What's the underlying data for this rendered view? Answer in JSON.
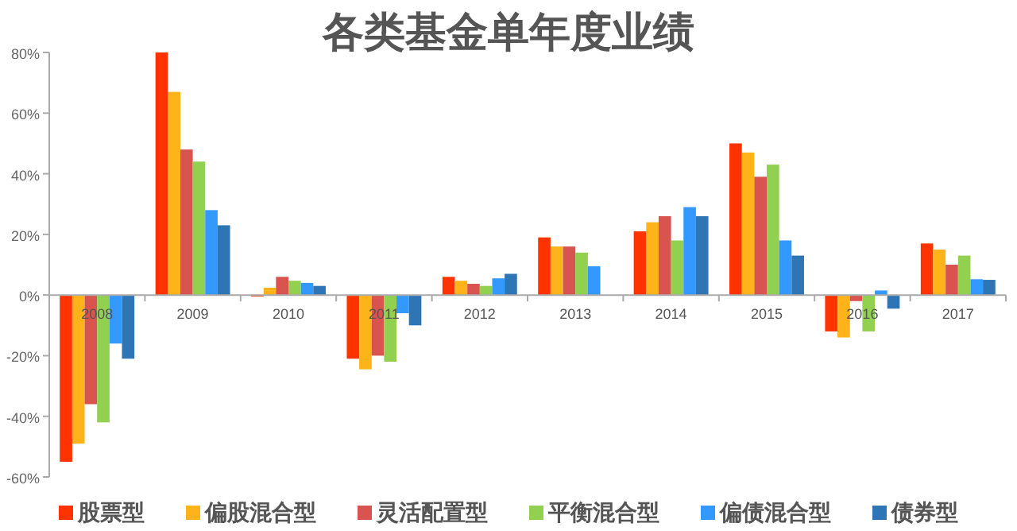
{
  "chart_data": {
    "type": "bar",
    "title": "各类基金单年度业绩",
    "categories": [
      "2008",
      "2009",
      "2010",
      "2011",
      "2012",
      "2013",
      "2014",
      "2015",
      "2016",
      "2017"
    ],
    "series": [
      {
        "name": "股票型",
        "color": "#ff3300",
        "values": [
          -55,
          80,
          -0.5,
          -21,
          6,
          19,
          21,
          50,
          -12,
          17
        ]
      },
      {
        "name": "偏股混合型",
        "color": "#ffb31a",
        "values": [
          -49,
          67,
          2.4,
          -24.5,
          4.7,
          16,
          24,
          47,
          -14,
          15
        ]
      },
      {
        "name": "灵活配置型",
        "color": "#d9534f",
        "values": [
          -36,
          48,
          6,
          -20,
          3.7,
          16,
          26,
          39,
          -2,
          10
        ]
      },
      {
        "name": "平衡混合型",
        "color": "#92d050",
        "values": [
          -42,
          44,
          4.7,
          -22,
          3,
          14,
          18,
          43,
          -12,
          13
        ]
      },
      {
        "name": "偏债混合型",
        "color": "#3399ff",
        "values": [
          -16,
          28,
          4,
          -6,
          5.5,
          9.5,
          29,
          18,
          1.5,
          5.2
        ]
      },
      {
        "name": "债券型",
        "color": "#2e75b6",
        "values": [
          -21,
          23,
          3,
          -10,
          7,
          null,
          26,
          13,
          -4.5,
          5
        ]
      }
    ],
    "ylim": [
      -60,
      80
    ],
    "yticks": [
      {
        "value": -60,
        "label": "-60%"
      },
      {
        "value": -40,
        "label": "-40%"
      },
      {
        "value": -20,
        "label": "-20%"
      },
      {
        "value": 0,
        "label": "0%"
      },
      {
        "value": 20,
        "label": "20%"
      },
      {
        "value": 40,
        "label": "40%"
      },
      {
        "value": 60,
        "label": "60%"
      },
      {
        "value": 80,
        "label": "80%"
      }
    ],
    "grid": false,
    "legend": "bottom"
  }
}
